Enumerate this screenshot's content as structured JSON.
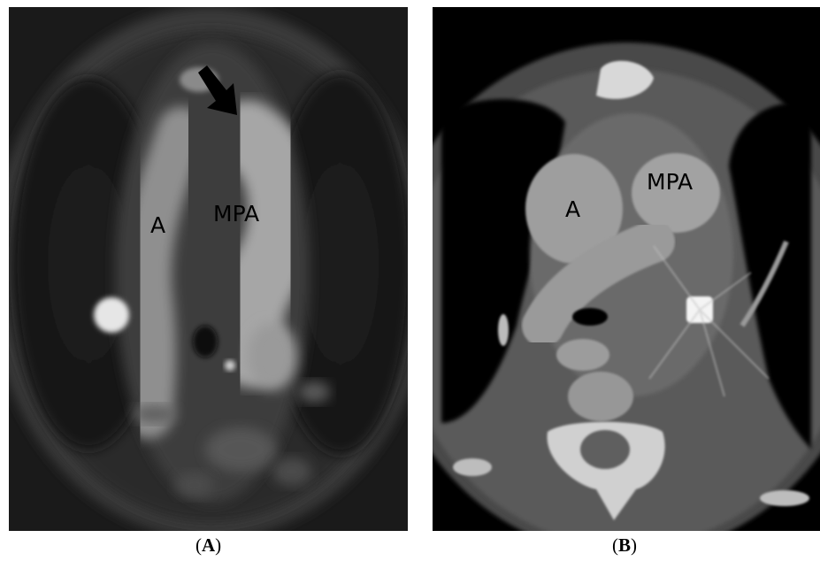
{
  "panels": [
    {
      "id": "A",
      "caption_open": "(",
      "caption_letter": "A",
      "caption_close": ")",
      "labels": {
        "aorta": "A",
        "main_pulmonary_artery": "MPA"
      },
      "annotation_icon": "arrow-down-right-icon"
    },
    {
      "id": "B",
      "caption_open": "(",
      "caption_letter": "B",
      "caption_close": ")",
      "labels": {
        "aorta": "A",
        "main_pulmonary_artery": "MPA"
      }
    }
  ],
  "colors": {
    "background": "#ffffff",
    "scan_black": "#000000",
    "label_text": "#000000"
  }
}
